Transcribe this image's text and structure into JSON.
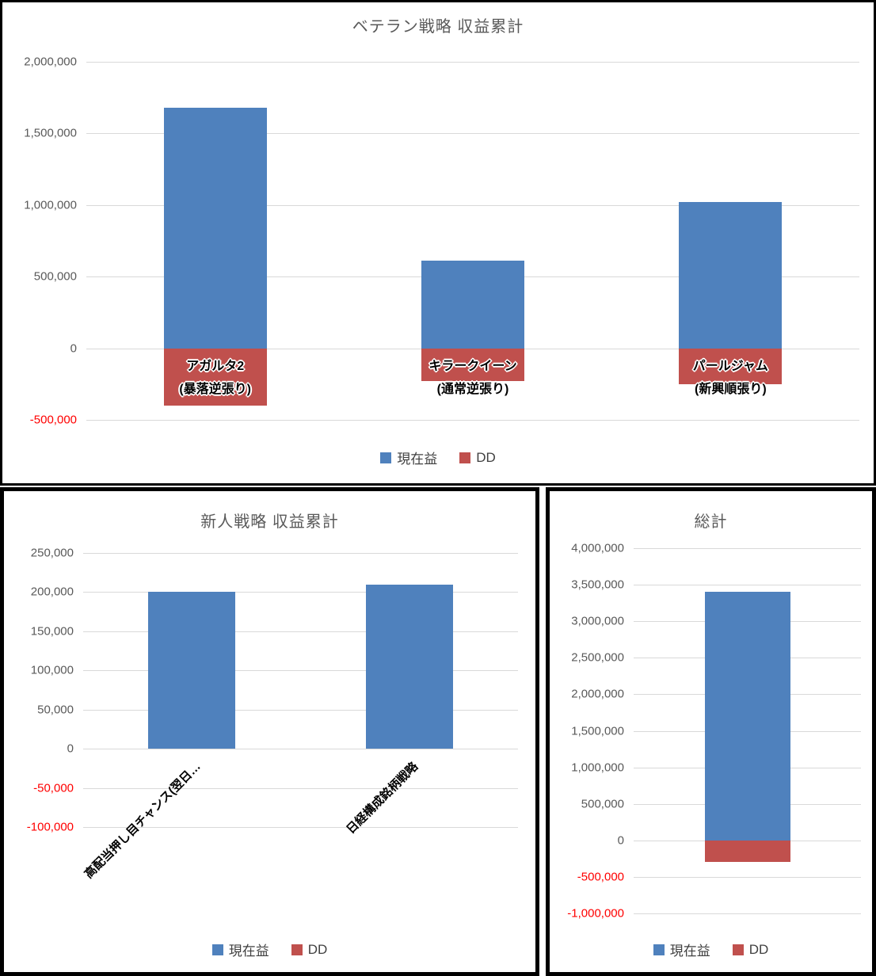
{
  "chart_data": [
    {
      "type": "bar",
      "title": "ベテラン戦略 収益累計",
      "categories": [
        "アガルタ2\n(暴落逆張り)",
        "キラークイーン\n(通常逆張り)",
        "パールジャム\n(新興順張り)"
      ],
      "series": [
        {
          "name": "現在益",
          "color": "#4f81bd",
          "values": [
            1680000,
            610000,
            1020000
          ]
        },
        {
          "name": "DD",
          "color": "#c0504d",
          "values": [
            -400000,
            -230000,
            -250000
          ]
        }
      ],
      "ylim": [
        -500000,
        2000000
      ],
      "ytick_step": 500000,
      "grid": true,
      "legend_position": "bottom",
      "negative_tick_color": "#ff0000",
      "category_label_style": "inline-outline"
    },
    {
      "type": "bar",
      "title": "新人戦略 収益累計",
      "categories": [
        "高配当押し目チャンス(翌日…",
        "日経構成銘柄戦略"
      ],
      "series": [
        {
          "name": "現在益",
          "color": "#4f81bd",
          "values": [
            200000,
            210000
          ]
        },
        {
          "name": "DD",
          "color": "#c0504d",
          "values": [
            0,
            0
          ]
        }
      ],
      "ylim": [
        -100000,
        250000
      ],
      "ytick_step": 50000,
      "grid": true,
      "legend_position": "bottom",
      "negative_tick_color": "#ff0000",
      "category_label_style": "rotated-45"
    },
    {
      "type": "bar",
      "title": "総計",
      "categories": [
        ""
      ],
      "series": [
        {
          "name": "現在益",
          "color": "#4f81bd",
          "values": [
            3400000
          ]
        },
        {
          "name": "DD",
          "color": "#c0504d",
          "values": [
            -300000
          ]
        }
      ],
      "ylim": [
        -1000000,
        4000000
      ],
      "ytick_step": 500000,
      "grid": true,
      "legend_position": "bottom",
      "negative_tick_color": "#ff0000",
      "category_label_style": "none"
    }
  ]
}
